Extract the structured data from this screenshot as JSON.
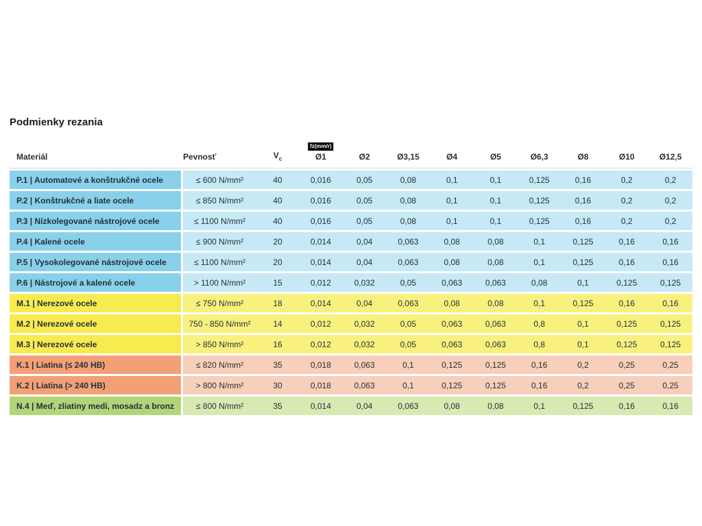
{
  "page": {
    "title": "Podmienky rezania"
  },
  "colors": {
    "P": {
      "cell": "#89d1ea",
      "row": "#c6e9f5"
    },
    "M": {
      "cell": "#f7eb50",
      "row": "#f9f17e"
    },
    "K": {
      "cell": "#f3a077",
      "row": "#f8cfba"
    },
    "N": {
      "cell": "#b3d478",
      "row": "#d8e9b1"
    }
  },
  "table": {
    "header": {
      "material": "Materiál",
      "pevnost": "Pevnosť",
      "vc_main": "V",
      "vc_sub": "c",
      "fz_badge": "fz(mm/r)",
      "diameters": [
        "Ø1",
        "Ø2",
        "Ø3,15",
        "Ø4",
        "Ø5",
        "Ø6,3",
        "Ø8",
        "Ø10",
        "Ø12,5"
      ]
    },
    "rows": [
      {
        "group": "P",
        "material": "P.1 | Automatové a konštrukčné ocele",
        "pevnost": "≤ 600 N/mm²",
        "vc": "40",
        "values": [
          "0,016",
          "0,05",
          "0,08",
          "0,1",
          "0,1",
          "0,125",
          "0,16",
          "0,2",
          "0,2"
        ]
      },
      {
        "group": "P",
        "material": "P.2 | Konštrukčné a liate ocele",
        "pevnost": "≤ 850 N/mm²",
        "vc": "40",
        "values": [
          "0,016",
          "0,05",
          "0,08",
          "0,1",
          "0,1",
          "0,125",
          "0,16",
          "0,2",
          "0,2"
        ]
      },
      {
        "group": "P",
        "material": "P.3 | Nízkolegované nástrojové ocele",
        "pevnost": "≤ 1100 N/mm²",
        "vc": "40",
        "values": [
          "0,016",
          "0,05",
          "0,08",
          "0,1",
          "0,1",
          "0,125",
          "0,16",
          "0,2",
          "0,2"
        ]
      },
      {
        "group": "P",
        "material": "P.4 | Kalené ocele",
        "pevnost": "≤ 900 N/mm²",
        "vc": "20",
        "values": [
          "0,014",
          "0,04",
          "0,063",
          "0,08",
          "0,08",
          "0,1",
          "0,125",
          "0,16",
          "0,16"
        ]
      },
      {
        "group": "P",
        "material": "P.5 | Vysokolegované nástrojové ocele",
        "pevnost": "≤ 1100 N/mm²",
        "vc": "20",
        "values": [
          "0,014",
          "0,04",
          "0,063",
          "0,08",
          "0,08",
          "0,1",
          "0,125",
          "0,16",
          "0,16"
        ]
      },
      {
        "group": "P",
        "material": "P.6 | Nástrojové a kalené ocele",
        "pevnost": "> 1100 N/mm²",
        "vc": "15",
        "values": [
          "0,012",
          "0,032",
          "0,05",
          "0,063",
          "0,063",
          "0,08",
          "0,1",
          "0,125",
          "0,125"
        ]
      },
      {
        "group": "M",
        "material": "M.1 | Nerezové ocele",
        "pevnost": "≤ 750 N/mm²",
        "vc": "18",
        "values": [
          "0,014",
          "0,04",
          "0,063",
          "0,08",
          "0,08",
          "0,1",
          "0,125",
          "0,16",
          "0,16"
        ]
      },
      {
        "group": "M",
        "material": "M.2 | Nerezové ocele",
        "pevnost": "750 - 850 N/mm²",
        "vc": "14",
        "values": [
          "0,012",
          "0,032",
          "0,05",
          "0,063",
          "0,063",
          "0,8",
          "0,1",
          "0,125",
          "0,125"
        ]
      },
      {
        "group": "M",
        "material": "M.3 | Nerezové ocele",
        "pevnost": "> 850 N/mm²",
        "vc": "16",
        "values": [
          "0,012",
          "0,032",
          "0,05",
          "0,063",
          "0,063",
          "0,8",
          "0,1",
          "0,125",
          "0,125"
        ]
      },
      {
        "group": "K",
        "material": "K.1 | Liatina (≤ 240 HB)",
        "pevnost": "≤ 820 N/mm²",
        "vc": "35",
        "values": [
          "0,018",
          "0,063",
          "0,1",
          "0,125",
          "0,125",
          "0,16",
          "0,2",
          "0,25",
          "0,25"
        ]
      },
      {
        "group": "K",
        "material": "K.2 | Liatina (> 240 HB)",
        "pevnost": "> 800 N/mm²",
        "vc": "30",
        "values": [
          "0,018",
          "0,063",
          "0,1",
          "0,125",
          "0,125",
          "0,16",
          "0,2",
          "0,25",
          "0,25"
        ]
      },
      {
        "group": "N",
        "material": "N.4 | Meď, zliatiny medi, mosadz a bronz",
        "pevnost": "≤ 800 N/mm²",
        "vc": "35",
        "values": [
          "0,014",
          "0,04",
          "0,063",
          "0,08",
          "0,08",
          "0,1",
          "0,125",
          "0,16",
          "0,16"
        ]
      }
    ]
  }
}
